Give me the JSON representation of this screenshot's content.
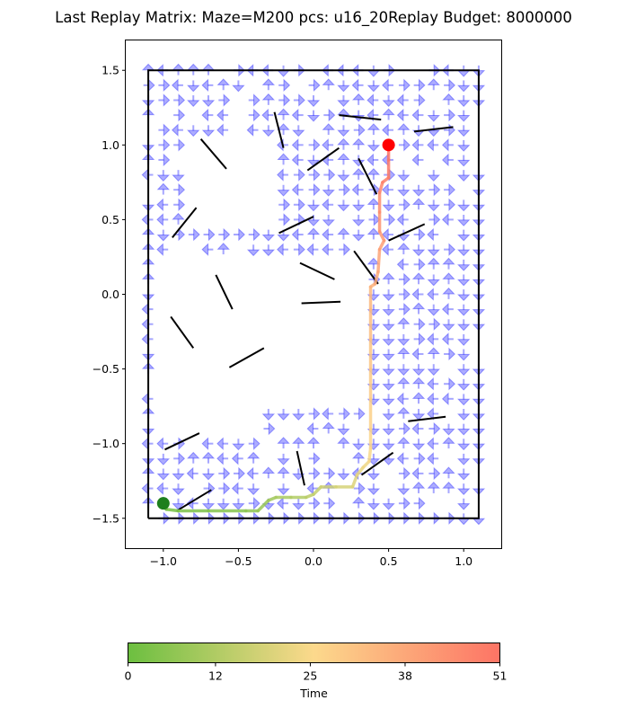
{
  "title": "Last Replay Matrix: Maze=M200 pcs: u16_20Replay Budget: 8000000",
  "colorbar": {
    "label": "Time",
    "ticks": [
      0,
      12,
      25,
      38,
      51
    ],
    "tick_labels": [
      "0",
      "12",
      "25",
      "38",
      "51"
    ],
    "range": [
      0,
      51
    ],
    "colors": [
      "#6cbf40",
      "#fcd98c",
      "#fd7465"
    ]
  },
  "chart_data": {
    "type": "quiver",
    "title": "Last Replay Matrix: Maze=M200 pcs: u16_20Replay Budget: 8000000",
    "xlim": [
      -1.25,
      1.25
    ],
    "ylim": [
      -1.7,
      1.7
    ],
    "xticks": [
      -1.0,
      -0.5,
      0.0,
      0.5,
      1.0
    ],
    "xtick_labels": [
      "−1.0",
      "−0.5",
      "0.0",
      "0.5",
      "1.0"
    ],
    "yticks": [
      -1.5,
      -1.0,
      -0.5,
      0.0,
      0.5,
      1.0,
      1.5
    ],
    "ytick_labels": [
      "−1.5",
      "−1.0",
      "−0.5",
      "0.0",
      "0.5",
      "1.0",
      "1.5"
    ],
    "grid": false,
    "arrow_color": "#3a3aff",
    "boundary": [
      [
        -1.1,
        -1.5
      ],
      [
        1.1,
        -1.5
      ],
      [
        1.1,
        1.5
      ],
      [
        -1.1,
        1.5
      ],
      [
        -1.1,
        -1.5
      ]
    ],
    "walls": [
      [
        [
          -0.26,
          1.22
        ],
        [
          -0.2,
          0.98
        ]
      ],
      [
        [
          0.17,
          1.2
        ],
        [
          0.45,
          1.17
        ]
      ],
      [
        [
          0.67,
          1.09
        ],
        [
          0.93,
          1.12
        ]
      ],
      [
        [
          -0.75,
          1.04
        ],
        [
          -0.58,
          0.84
        ]
      ],
      [
        [
          -0.04,
          0.83
        ],
        [
          0.17,
          0.98
        ]
      ],
      [
        [
          0.3,
          0.91
        ],
        [
          0.42,
          0.67
        ]
      ],
      [
        [
          -0.94,
          0.38
        ],
        [
          -0.78,
          0.58
        ]
      ],
      [
        [
          -0.23,
          0.41
        ],
        [
          0.0,
          0.52
        ]
      ],
      [
        [
          0.5,
          0.36
        ],
        [
          0.74,
          0.47
        ]
      ],
      [
        [
          0.27,
          0.29
        ],
        [
          0.43,
          0.07
        ]
      ],
      [
        [
          -0.09,
          0.21
        ],
        [
          0.14,
          0.1
        ]
      ],
      [
        [
          -0.65,
          0.13
        ],
        [
          -0.54,
          -0.1
        ]
      ],
      [
        [
          -0.08,
          -0.06
        ],
        [
          0.18,
          -0.05
        ]
      ],
      [
        [
          -0.95,
          -0.15
        ],
        [
          -0.8,
          -0.36
        ]
      ],
      [
        [
          -0.56,
          -0.49
        ],
        [
          -0.33,
          -0.36
        ]
      ],
      [
        [
          0.63,
          -0.85
        ],
        [
          0.88,
          -0.82
        ]
      ],
      [
        [
          -0.99,
          -1.04
        ],
        [
          -0.76,
          -0.93
        ]
      ],
      [
        [
          -0.11,
          -1.05
        ],
        [
          -0.06,
          -1.28
        ]
      ],
      [
        [
          0.32,
          -1.21
        ],
        [
          0.53,
          -1.06
        ]
      ],
      [
        [
          -0.91,
          -1.45
        ],
        [
          -0.68,
          -1.31
        ]
      ]
    ],
    "replay_path": {
      "time_range": [
        0,
        51
      ],
      "points": [
        [
          -1.0,
          -1.41
        ],
        [
          -0.98,
          -1.44
        ],
        [
          -0.9,
          -1.45
        ],
        [
          -0.7,
          -1.45
        ],
        [
          -0.45,
          -1.45
        ],
        [
          -0.37,
          -1.45
        ],
        [
          -0.3,
          -1.38
        ],
        [
          -0.25,
          -1.36
        ],
        [
          -0.15,
          -1.36
        ],
        [
          -0.05,
          -1.36
        ],
        [
          0.0,
          -1.34
        ],
        [
          0.05,
          -1.29
        ],
        [
          0.15,
          -1.29
        ],
        [
          0.26,
          -1.29
        ],
        [
          0.29,
          -1.21
        ],
        [
          0.33,
          -1.16
        ],
        [
          0.37,
          -1.12
        ],
        [
          0.38,
          -1.03
        ],
        [
          0.38,
          -0.9
        ],
        [
          0.38,
          -0.7
        ],
        [
          0.38,
          -0.5
        ],
        [
          0.38,
          -0.3
        ],
        [
          0.38,
          -0.1
        ],
        [
          0.38,
          0.05
        ],
        [
          0.41,
          0.07
        ],
        [
          0.43,
          0.15
        ],
        [
          0.44,
          0.3
        ],
        [
          0.47,
          0.36
        ],
        [
          0.44,
          0.42
        ],
        [
          0.44,
          0.55
        ],
        [
          0.44,
          0.68
        ],
        [
          0.46,
          0.75
        ],
        [
          0.5,
          0.78
        ],
        [
          0.5,
          0.9
        ],
        [
          0.5,
          1.0
        ]
      ]
    },
    "start": {
      "x": -1.0,
      "y": -1.4,
      "color": "#1d7f1d"
    },
    "goal": {
      "x": 0.5,
      "y": 1.0,
      "color": "#ff0000"
    }
  }
}
